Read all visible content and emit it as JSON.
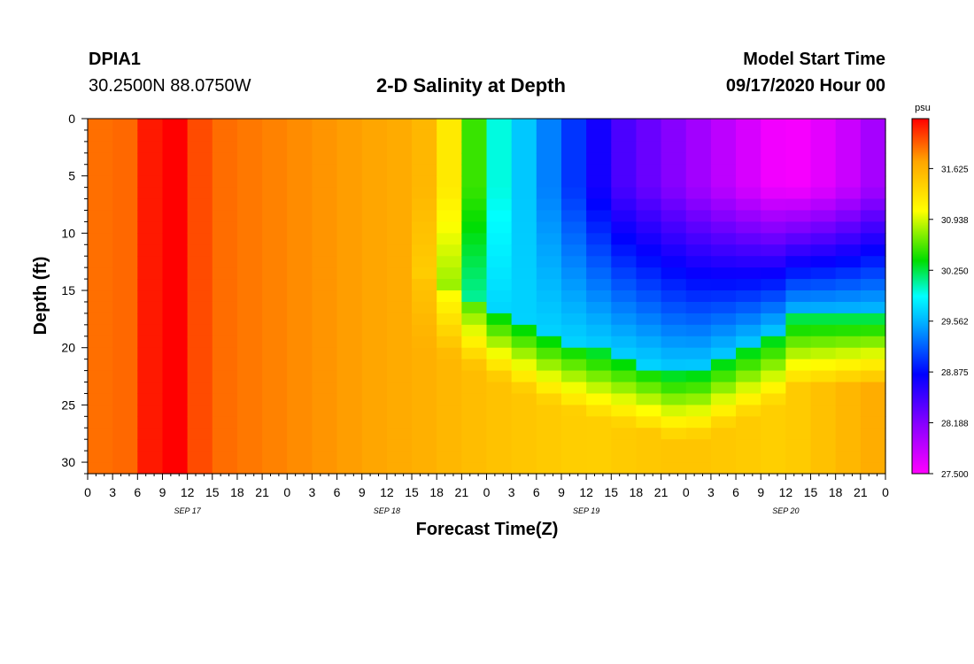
{
  "header": {
    "station": "DPIA1",
    "coords": "30.2500N 88.0750W",
    "title": "2-D Salinity at Depth",
    "model_start_label": "Model Start Time",
    "model_start_value": "09/17/2020 Hour 00"
  },
  "chart_data": {
    "type": "heatmap",
    "title": "2-D Salinity at Depth",
    "xlabel": "Forecast Time(Z)",
    "ylabel": "Depth (ft)",
    "x_range_hours": [
      0,
      96
    ],
    "y_range_ft": [
      0,
      31
    ],
    "y_inverted": true,
    "x_tick_labels": [
      "0",
      "3",
      "6",
      "9",
      "12",
      "15",
      "18",
      "21",
      "0",
      "3",
      "6",
      "9",
      "12",
      "15",
      "18",
      "21",
      "0",
      "3",
      "6",
      "9",
      "12",
      "15",
      "18",
      "21",
      "0",
      "3",
      "6",
      "9",
      "12",
      "15",
      "18",
      "21",
      "0"
    ],
    "x_day_labels": [
      "SEP 17",
      "SEP 18",
      "SEP 19",
      "SEP 20"
    ],
    "y_ticks": [
      0,
      5,
      10,
      15,
      20,
      25,
      30
    ],
    "colorbar": {
      "unit": "psu",
      "min": 27.5,
      "max": 32.3,
      "tick_values": [
        27.5,
        28.188,
        28.875,
        29.562,
        30.25,
        30.938,
        31.625
      ],
      "tick_labels": [
        "27.500",
        "28.188",
        "28.875",
        "29.562",
        "30.250",
        "30.938",
        "31.625"
      ]
    },
    "grid_step_hours": 3,
    "grid_step_ft": 1,
    "approx_surface_salinity_psu": [
      {
        "hour": 0,
        "value": 31.9
      },
      {
        "hour": 9,
        "value": 32.3
      },
      {
        "hour": 21,
        "value": 31.8
      },
      {
        "hour": 42,
        "value": 31.6
      },
      {
        "hour": 44,
        "value": 31.0
      },
      {
        "hour": 48,
        "value": 30.25
      },
      {
        "hour": 56,
        "value": 29.5
      },
      {
        "hour": 66,
        "value": 28.4
      },
      {
        "hour": 84,
        "value": 27.5
      },
      {
        "hour": 96,
        "value": 28.0
      }
    ]
  }
}
